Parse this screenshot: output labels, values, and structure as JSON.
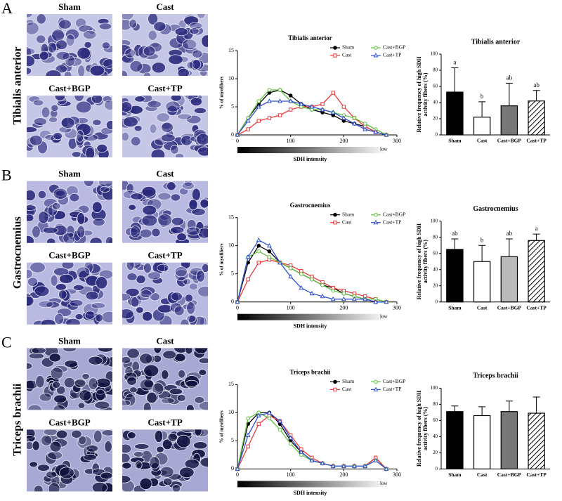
{
  "panels": [
    {
      "letter": "A",
      "muscle": "Tibialis anterior",
      "image_labels": [
        "Sham",
        "Cast",
        "Cast+BGP",
        "Cast+TP"
      ]
    },
    {
      "letter": "B",
      "muscle": "Gastrocnemius",
      "image_labels": [
        "Sham",
        "Cast",
        "Cast+BGP",
        "Cast+TP"
      ]
    },
    {
      "letter": "C",
      "muscle": "Triceps brachii",
      "image_labels": [
        "Sham",
        "Cast",
        "Cast+BGP",
        "Cast+TP"
      ]
    }
  ],
  "chart_data": [
    {
      "type": "line",
      "title": "Tibialis anterior",
      "x_label": "SDH intensity",
      "y_label": "% of myofibers",
      "gradient_labels": [
        "High",
        "low"
      ],
      "x": [
        0,
        20,
        40,
        60,
        80,
        100,
        120,
        140,
        160,
        180,
        200,
        220,
        240,
        260,
        280
      ],
      "series": [
        {
          "name": "Sham",
          "color": "#000000",
          "marker": "circle-filled",
          "values": [
            0,
            3,
            5.5,
            7.5,
            8,
            7,
            5.5,
            4.5,
            4,
            3.5,
            2.5,
            2,
            1.5,
            0.5,
            0
          ]
        },
        {
          "name": "Cast",
          "color": "#e8393b",
          "marker": "square-open",
          "values": [
            0,
            1,
            2.5,
            3,
            3.5,
            4.5,
            5,
            5,
            5.5,
            7.5,
            5,
            3,
            1.5,
            0.5,
            0
          ]
        },
        {
          "name": "Cast+BGP",
          "color": "#5fbf3f",
          "marker": "circle-open",
          "values": [
            0,
            3,
            6,
            8,
            8,
            6,
            5,
            4.5,
            4.5,
            4,
            3.5,
            3,
            2,
            1,
            0
          ]
        },
        {
          "name": "Cast+TP",
          "color": "#2f4fd0",
          "marker": "triangle-open",
          "values": [
            0,
            2.5,
            5,
            6,
            6,
            6,
            5.5,
            5,
            4.5,
            4,
            3,
            2,
            1,
            0.5,
            0
          ]
        }
      ],
      "xlim": [
        0,
        300
      ],
      "ylim": [
        0,
        15
      ],
      "xticks": [
        0,
        100,
        200,
        300
      ],
      "yticks": [
        0,
        5,
        10,
        15
      ],
      "legend": "top-right"
    },
    {
      "type": "bar",
      "title": "Tibialis anterior",
      "y_label": "Relative frequency of high SDH activity fibers (%)",
      "categories": [
        "Sham",
        "Cast",
        "Cast+BGP",
        "Cast+TP"
      ],
      "values": [
        53,
        22,
        36,
        42
      ],
      "errors": [
        30,
        19,
        28,
        13
      ],
      "annotations": [
        "a",
        "b",
        "ab",
        "ab"
      ],
      "colors": [
        "#000000",
        "#ffffff",
        "#777777",
        "#ffffff"
      ],
      "patterns": [
        "solid",
        "solid",
        "solid",
        "hatch"
      ],
      "ylim": [
        0,
        100
      ],
      "yticks": [
        0,
        20,
        40,
        60,
        80,
        100
      ]
    },
    {
      "type": "line",
      "title": "Gastrocnemius",
      "x_label": "SDH intensity",
      "y_label": "% of myofibers",
      "gradient_labels": [
        "High",
        "low"
      ],
      "x": [
        0,
        20,
        40,
        60,
        80,
        100,
        120,
        140,
        160,
        180,
        200,
        220,
        240,
        260,
        280
      ],
      "series": [
        {
          "name": "Sham",
          "color": "#000000",
          "marker": "circle-filled",
          "values": [
            0,
            7,
            10,
            9,
            7,
            6,
            5,
            4,
            3,
            2.5,
            1.5,
            1,
            0.5,
            0,
            0
          ]
        },
        {
          "name": "Cast",
          "color": "#e8393b",
          "marker": "square-open",
          "values": [
            0,
            4,
            7,
            7.5,
            7,
            6.5,
            5.5,
            4.5,
            3.5,
            2.5,
            2,
            1.5,
            1,
            0.5,
            0
          ]
        },
        {
          "name": "Cast+BGP",
          "color": "#5fbf3f",
          "marker": "circle-open",
          "values": [
            0,
            8,
            9,
            8,
            7,
            6,
            5,
            4,
            3,
            2,
            1.5,
            1,
            0.5,
            0.5,
            0
          ]
        },
        {
          "name": "Cast+TP",
          "color": "#2f4fd0",
          "marker": "triangle-open",
          "values": [
            0,
            8,
            11,
            10,
            7,
            4.5,
            2.5,
            1.5,
            1,
            0.5,
            0.5,
            0.5,
            0.5,
            0,
            0
          ]
        }
      ],
      "xlim": [
        0,
        300
      ],
      "ylim": [
        0,
        15
      ],
      "xticks": [
        0,
        100,
        200,
        300
      ],
      "yticks": [
        0,
        5,
        10,
        15
      ],
      "legend": "top-right"
    },
    {
      "type": "bar",
      "title": "Gastrocnemius",
      "y_label": "Relative frequency of high SDH activity fibers (%)",
      "categories": [
        "Sham",
        "Cast",
        "Cast+BGP",
        "Cast+TP"
      ],
      "values": [
        65,
        50,
        56,
        76
      ],
      "errors": [
        13,
        20,
        22,
        8
      ],
      "annotations": [
        "ab",
        "b",
        "ab",
        "a"
      ],
      "colors": [
        "#000000",
        "#ffffff",
        "#bbbbbb",
        "#ffffff"
      ],
      "patterns": [
        "solid",
        "solid",
        "solid",
        "hatch"
      ],
      "ylim": [
        0,
        100
      ],
      "yticks": [
        0,
        20,
        40,
        60,
        80,
        100
      ]
    },
    {
      "type": "line",
      "title": "Triceps brachii",
      "x_label": "SDH intensity",
      "y_label": "% of myofibers",
      "gradient_labels": [
        "High",
        "low"
      ],
      "x": [
        0,
        20,
        40,
        60,
        80,
        100,
        120,
        140,
        160,
        180,
        200,
        220,
        240,
        260,
        280
      ],
      "series": [
        {
          "name": "Sham",
          "color": "#000000",
          "marker": "circle-filled",
          "values": [
            0,
            8,
            10,
            10,
            8,
            5,
            3,
            1.5,
            1,
            0.5,
            0.5,
            0.5,
            0.5,
            2,
            0
          ]
        },
        {
          "name": "Cast",
          "color": "#e8393b",
          "marker": "square-open",
          "values": [
            0,
            4,
            8,
            9.5,
            8.5,
            6,
            3.5,
            2,
            1,
            0.5,
            0.5,
            0.5,
            0.5,
            2,
            0
          ]
        },
        {
          "name": "Cast+BGP",
          "color": "#5fbf3f",
          "marker": "circle-open",
          "values": [
            0,
            9,
            10,
            9,
            7,
            4.5,
            2.5,
            1.5,
            1,
            0.5,
            0.5,
            0.5,
            0.5,
            1.5,
            0
          ]
        },
        {
          "name": "Cast+TP",
          "color": "#2f4fd0",
          "marker": "triangle-open",
          "values": [
            0,
            6,
            9.5,
            10,
            8.5,
            5.5,
            3,
            1.5,
            1,
            0.5,
            0.5,
            0.5,
            0.5,
            1.5,
            0
          ]
        }
      ],
      "xlim": [
        0,
        300
      ],
      "ylim": [
        0,
        15
      ],
      "xticks": [
        0,
        100,
        200,
        300
      ],
      "yticks": [
        0,
        5,
        10,
        15
      ],
      "legend": "top-right"
    },
    {
      "type": "bar",
      "title": "Triceps brachii",
      "y_label": "Relative frequency of high SDH activity fibers (%)",
      "categories": [
        "Sham",
        "Cast",
        "Cast+BGP",
        "Cast+TP"
      ],
      "values": [
        71,
        66,
        71,
        69
      ],
      "errors": [
        7,
        11,
        13,
        20
      ],
      "colors": [
        "#000000",
        "#ffffff",
        "#777777",
        "#ffffff"
      ],
      "patterns": [
        "solid",
        "solid",
        "solid",
        "hatch"
      ],
      "ylim": [
        0,
        100
      ],
      "yticks": [
        0,
        20,
        40,
        60,
        80,
        100
      ]
    }
  ]
}
